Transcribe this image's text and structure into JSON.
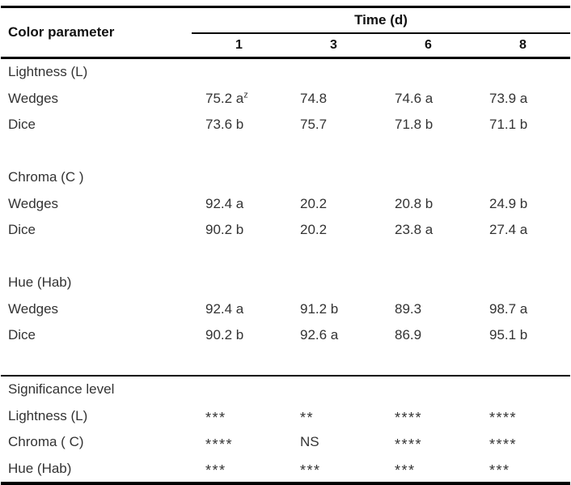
{
  "table": {
    "corner_header": "Color parameter",
    "time_header": "Time (d)",
    "time_columns": [
      "1",
      "3",
      "6",
      "8"
    ],
    "sections": [
      {
        "name": "Lightness (L)",
        "rows": [
          {
            "label": "Wedges",
            "values": [
              "75.2 a",
              "74.8",
              "74.6 a",
              "73.9 a"
            ],
            "footnote_marker": "z"
          },
          {
            "label": "Dice",
            "values": [
              "73.6 b",
              "75.7",
              "71.8 b",
              "71.1 b"
            ]
          }
        ]
      },
      {
        "name": "Chroma (C )",
        "rows": [
          {
            "label": "Wedges",
            "values": [
              "92.4 a",
              "20.2",
              "20.8 b",
              "24.9 b"
            ]
          },
          {
            "label": "Dice",
            "values": [
              "90.2 b",
              "20.2",
              "23.8 a",
              "27.4 a"
            ]
          }
        ]
      },
      {
        "name": "Hue (Hab)",
        "rows": [
          {
            "label": "Wedges",
            "values": [
              "92.4 a",
              "91.2 b",
              "89.3",
              "98.7 a"
            ]
          },
          {
            "label": "Dice",
            "values": [
              "90.2 b",
              "92.6 a",
              "86.9",
              "95.1 b"
            ]
          }
        ]
      }
    ],
    "significance": {
      "name": "Significance level",
      "rows": [
        {
          "label": "Lightness (L)",
          "values": [
            "***",
            "**",
            "****",
            "****"
          ]
        },
        {
          "label": "Chroma ( C)",
          "values": [
            "****",
            "NS",
            "****",
            "****"
          ]
        },
        {
          "label": "Hue (Hab)",
          "values": [
            "***",
            "***",
            "***",
            "***"
          ]
        }
      ]
    },
    "colors": {
      "text": "#333333",
      "header_text": "#111111",
      "rule": "#000000",
      "background": "#ffffff"
    }
  }
}
